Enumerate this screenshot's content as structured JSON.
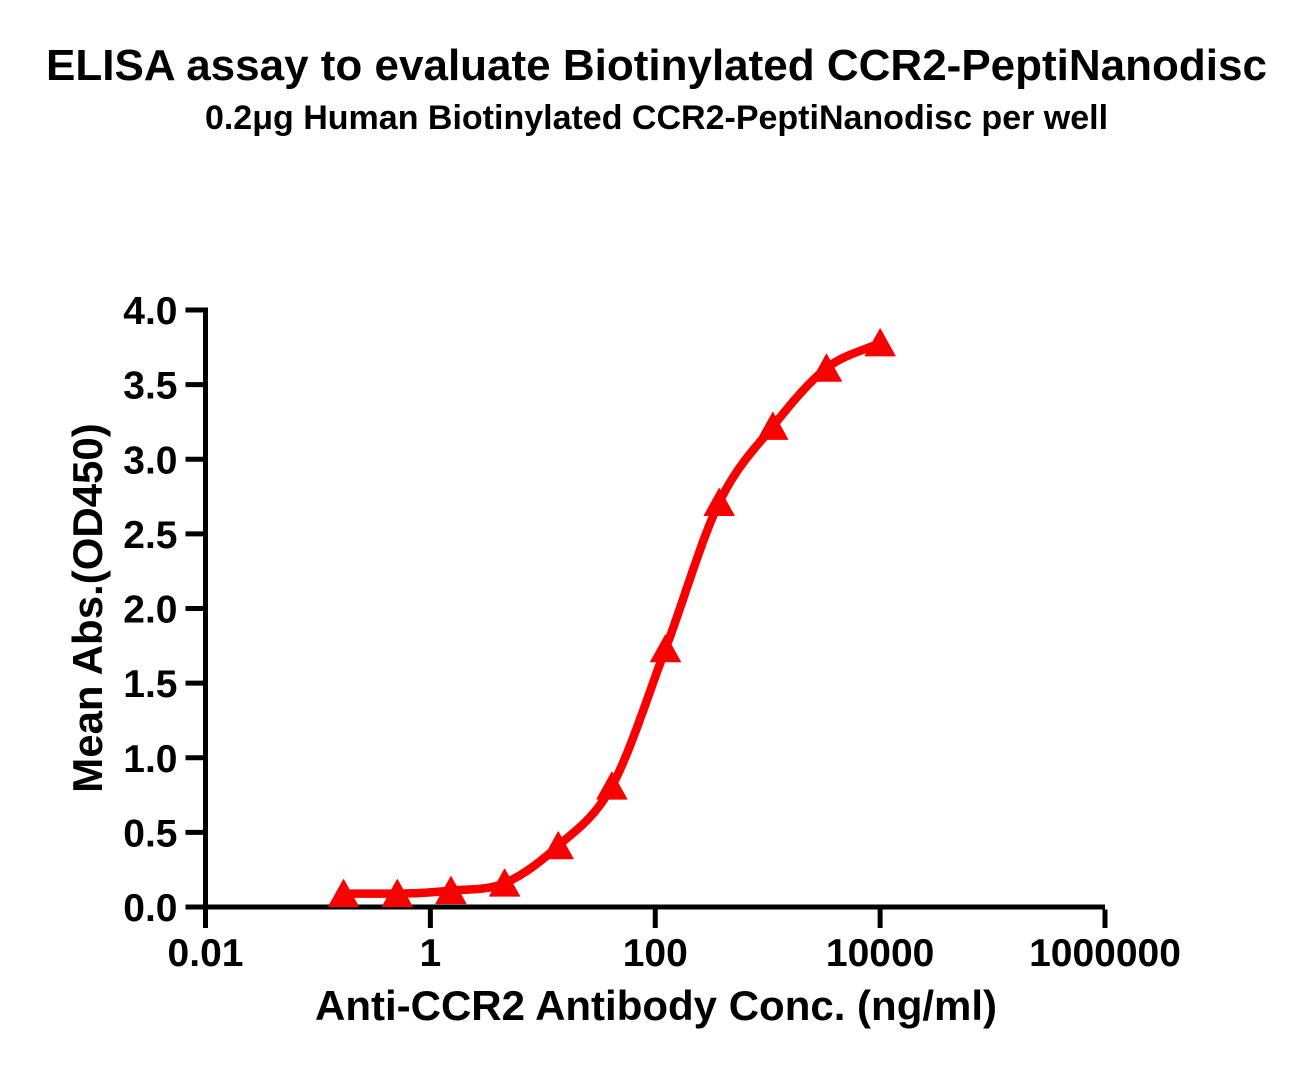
{
  "title": "ELISA assay to evaluate Biotinylated CCR2-PeptiNanodisc",
  "subtitle": "0.2μg Human Biotinylated CCR2-PeptiNanodisc per well",
  "colors": {
    "curve": "#F90000",
    "axis": "#000000",
    "text": "#000000",
    "background": "#FFFFFF"
  },
  "chart_data": {
    "type": "line",
    "title": "ELISA assay to evaluate Biotinylated CCR2-PeptiNanodisc",
    "subtitle": "0.2μg Human Biotinylated CCR2-PeptiNanodisc per well",
    "xlabel": "Anti-CCR2 Antibody Conc. (ng/ml)",
    "ylabel": "Mean Abs.(OD450)",
    "x_scale": "log10",
    "xlim": [
      0.01,
      1000000
    ],
    "ylim": [
      0,
      4
    ],
    "grid": false,
    "legend_position": "none",
    "x_ticks": [
      0.01,
      1,
      100,
      10000,
      1000000
    ],
    "x_tick_labels": [
      "0.01",
      "1",
      "100",
      "10000",
      "1000000"
    ],
    "y_ticks": [
      0,
      0.5,
      1,
      1.5,
      2,
      2.5,
      3,
      3.5,
      4
    ],
    "y_tick_labels": [
      "0.0",
      "0.5",
      "1.0",
      "1.5",
      "2.0",
      "2.5",
      "3.0",
      "3.5",
      "4.0"
    ],
    "series": [
      {
        "name": "Biotinylated CCR2-PeptiNanodisc",
        "marker": "triangle-up",
        "color": "#F90000",
        "line": "smooth-sigmoid",
        "x": [
          0.169,
          0.508,
          1.524,
          4.572,
          13.717,
          41.152,
          123.457,
          370.37,
          1111.11,
          3333.33,
          10000
        ],
        "y": [
          0.09,
          0.09,
          0.11,
          0.16,
          0.41,
          0.81,
          1.73,
          2.71,
          3.22,
          3.61,
          3.78
        ]
      }
    ]
  }
}
